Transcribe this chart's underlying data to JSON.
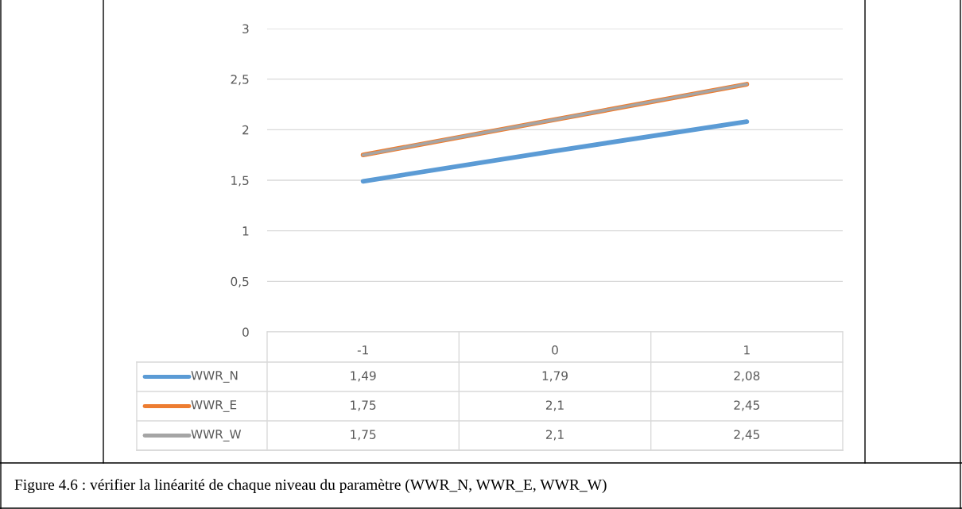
{
  "chart_data": {
    "type": "line",
    "categories": [
      "-1",
      "0",
      "1"
    ],
    "series": [
      {
        "name": "WWR_N",
        "color": "#5b9bd5",
        "values": [
          1.49,
          1.79,
          2.08
        ],
        "value_labels": [
          "1,49",
          "1,79",
          "2,08"
        ]
      },
      {
        "name": "WWR_E",
        "color": "#ed7d31",
        "values": [
          1.75,
          2.1,
          2.45
        ],
        "value_labels": [
          "1,75",
          "2,1",
          "2,45"
        ]
      },
      {
        "name": "WWR_W",
        "color": "#a5a5a5",
        "values": [
          1.75,
          2.1,
          2.45
        ],
        "value_labels": [
          "1,75",
          "2,1",
          "2,45"
        ]
      }
    ],
    "ylim": [
      0,
      3
    ],
    "yticks": [
      0,
      {
        "value": 0.5,
        "label": "0,5"
      },
      1,
      {
        "value": 1.5,
        "label": "1,5"
      },
      2,
      {
        "value": 2.5,
        "label": "2,5"
      },
      3
    ],
    "grid": "y",
    "legend": "bottom",
    "marker": "none",
    "line_style": "solid",
    "annotations": [
      "Figure 4.6 : vérifier la linéarité de chaque niveau du paramètre (WWR_N, WWR_E, WWR_W)"
    ]
  }
}
